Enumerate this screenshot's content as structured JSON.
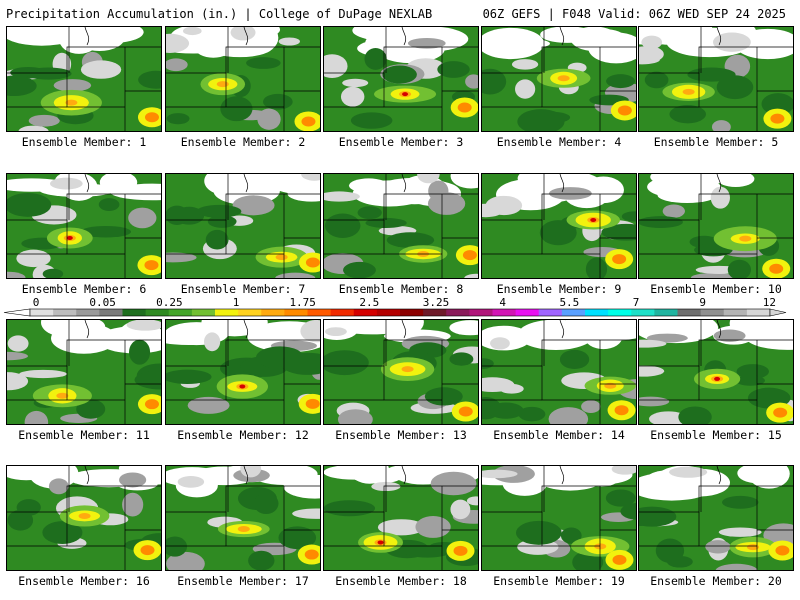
{
  "header": {
    "left_title": "Precipitation Accumulation (in.) | College of DuPage NEXLAB",
    "right_title": "06Z GEFS | F048 Valid: 06Z WED SEP 24 2025"
  },
  "colorbar": {
    "tick_labels": [
      "0",
      "0.05",
      "0.25",
      "1",
      "1.75",
      "2.5",
      "3.25",
      "4",
      "5.5",
      "7",
      "9",
      "12"
    ],
    "colors": [
      "#e0e0e0",
      "#bdbdbd",
      "#9a9a9a",
      "#7a7a7a",
      "#1e6e1e",
      "#2f8a22",
      "#44a52a",
      "#72c032",
      "#f2f20e",
      "#ffd21e",
      "#ffaa10",
      "#ff8a00",
      "#ff5a00",
      "#f02a00",
      "#d40000",
      "#b40000",
      "#8c0000",
      "#6e1a2a",
      "#8a1a5a",
      "#b0147a",
      "#d214b4",
      "#e810f0",
      "#a064ff",
      "#5aa0ff",
      "#00e0ff",
      "#00ffe6",
      "#1ee0c8",
      "#20b4a0",
      "#6e6e6e",
      "#909090",
      "#b4b4b4",
      "#d6d6d6"
    ]
  },
  "members": [
    {
      "caption": "Ensemble Member: 1"
    },
    {
      "caption": "Ensemble Member: 2"
    },
    {
      "caption": "Ensemble Member: 3"
    },
    {
      "caption": "Ensemble Member: 4"
    },
    {
      "caption": "Ensemble Member: 5"
    },
    {
      "caption": "Ensemble Member: 6"
    },
    {
      "caption": "Ensemble Member: 7"
    },
    {
      "caption": "Ensemble Member: 8"
    },
    {
      "caption": "Ensemble Member: 9"
    },
    {
      "caption": "Ensemble Member: 10"
    },
    {
      "caption": "Ensemble Member: 11"
    },
    {
      "caption": "Ensemble Member: 12"
    },
    {
      "caption": "Ensemble Member: 13"
    },
    {
      "caption": "Ensemble Member: 14"
    },
    {
      "caption": "Ensemble Member: 15"
    },
    {
      "caption": "Ensemble Member: 16"
    },
    {
      "caption": "Ensemble Member: 17"
    },
    {
      "caption": "Ensemble Member: 18"
    },
    {
      "caption": "Ensemble Member: 19"
    },
    {
      "caption": "Ensemble Member: 20"
    }
  ]
}
